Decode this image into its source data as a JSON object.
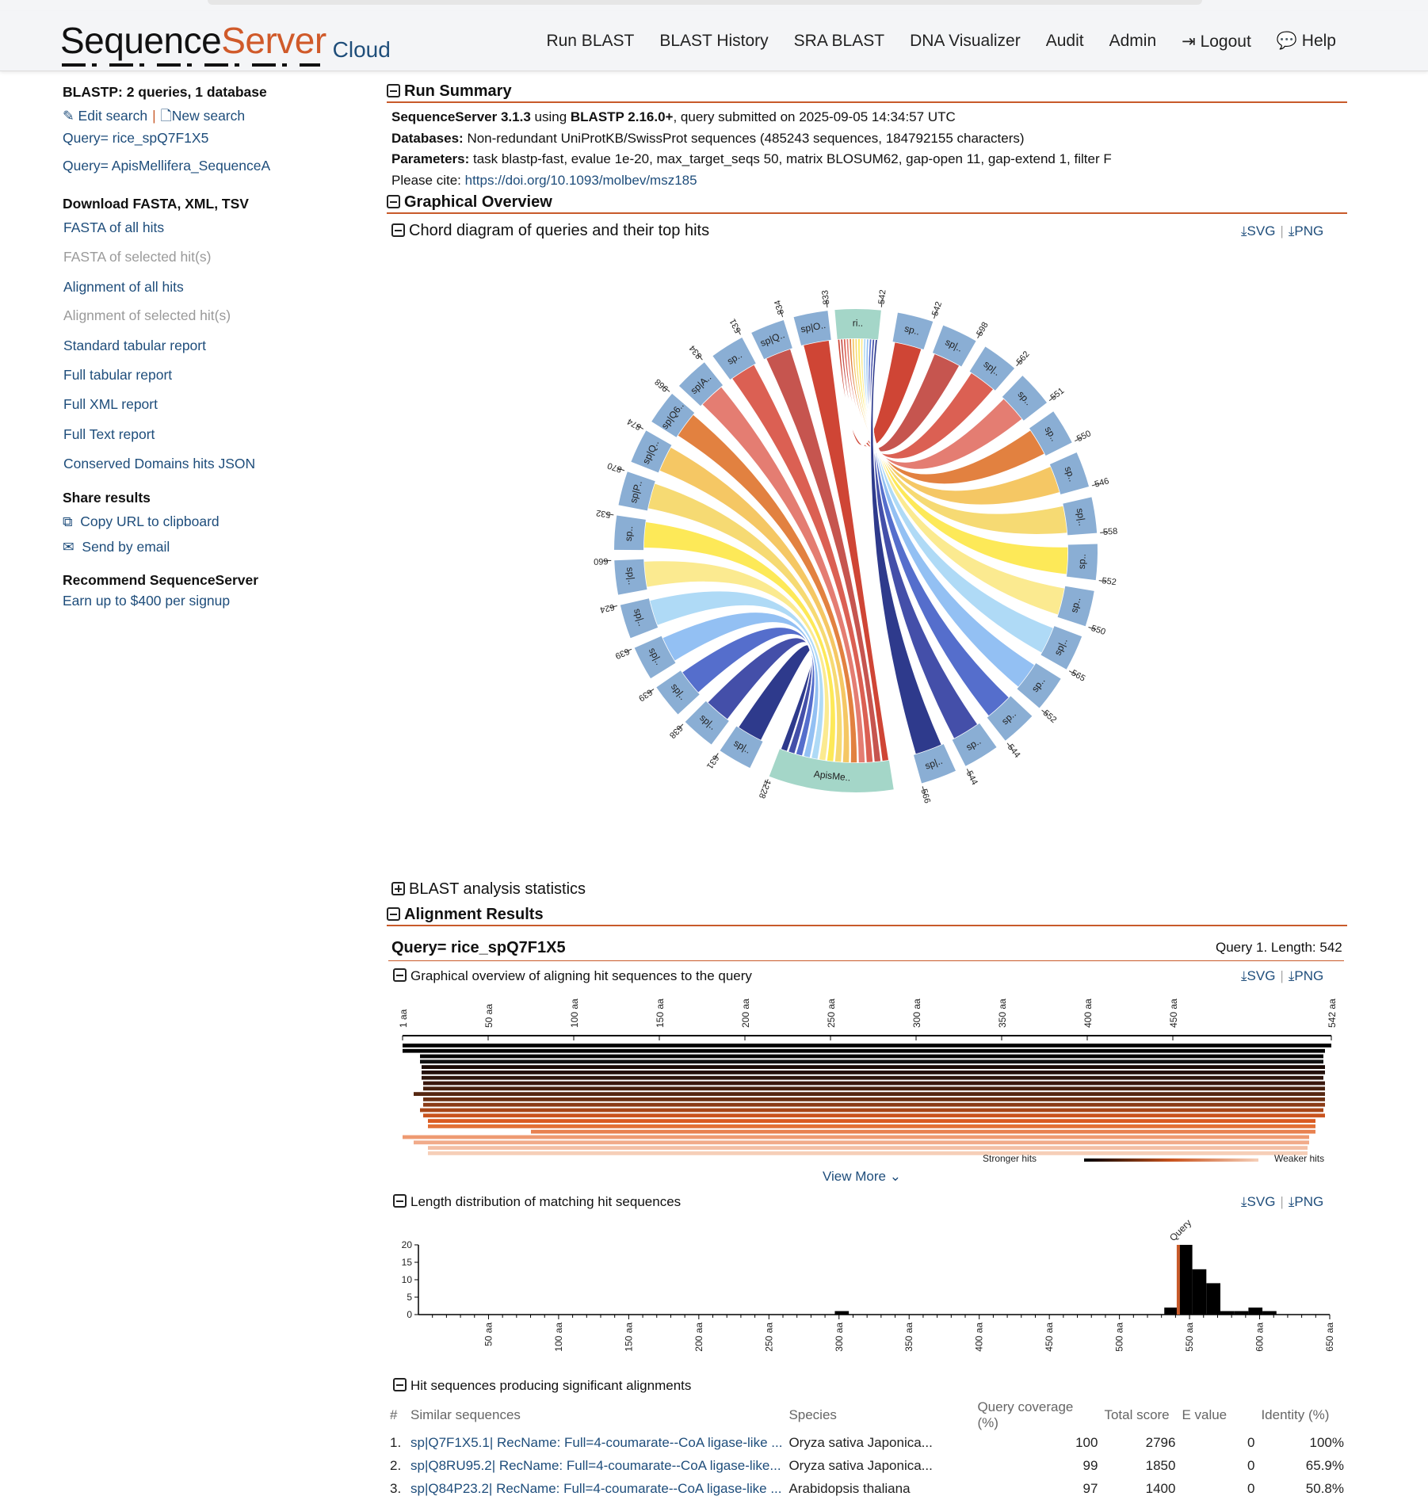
{
  "header": {
    "logo_seq": "Sequence",
    "logo_srv": "Server",
    "logo_cloud": "Cloud",
    "nav": [
      "Run BLAST",
      "BLAST History",
      "SRA BLAST",
      "DNA Visualizer",
      "Audit",
      "Admin",
      "Logout",
      "Help"
    ]
  },
  "sidebar": {
    "title": "BLASTP: 2 queries, 1 database",
    "edit_search": "Edit search",
    "new_search": "New search",
    "queries": [
      "Query= rice_spQ7F1X5",
      "Query= ApisMellifera_SequenceA"
    ],
    "download_title": "Download FASTA, XML, TSV",
    "downloads": [
      {
        "label": "FASTA of all hits",
        "enabled": true
      },
      {
        "label": "FASTA of selected hit(s)",
        "enabled": false
      },
      {
        "label": "Alignment of all hits",
        "enabled": true
      },
      {
        "label": "Alignment of selected hit(s)",
        "enabled": false
      },
      {
        "label": "Standard tabular report",
        "enabled": true
      },
      {
        "label": "Full tabular report",
        "enabled": true
      },
      {
        "label": "Full XML report",
        "enabled": true
      },
      {
        "label": "Full Text report",
        "enabled": true
      },
      {
        "label": "Conserved Domains hits JSON",
        "enabled": true
      }
    ],
    "share_title": "Share results",
    "copy_url": "Copy URL to clipboard",
    "send_email": "Send by email",
    "recommend_title": "Recommend SequenceServer",
    "recommend_link": "Earn up to $400 per signup"
  },
  "summary": {
    "title": "Run Summary",
    "line1_a": "SequenceServer 3.1.3",
    "line1_b": " using ",
    "line1_c": "BLASTP 2.16.0+",
    "line1_d": ", query submitted on 2025-09-05 14:34:57 UTC",
    "db_label": "Databases:",
    "db_value": " Non-redundant UniProtKB/SwissProt sequences (485243 sequences, 184792155 characters)",
    "param_label": "Parameters:",
    "param_value": " task blastp-fast, evalue 1e-20, max_target_seqs 50, matrix BLOSUM62, gap-open 11, gap-extend 1, filter F",
    "cite_label": "Please cite: ",
    "cite_link": "https://doi.org/10.1093/molbev/msz185"
  },
  "graphical_overview": {
    "title": "Graphical Overview",
    "chord_title": "Chord diagram of queries and their top hits",
    "svg": "SVG",
    "png": "PNG"
  },
  "chord": {
    "queries": [
      {
        "label": "ri..",
        "length": "542"
      },
      {
        "label": "ApisMe..",
        "length": "1228"
      }
    ],
    "hits": [
      {
        "label": "sp..",
        "length": "542"
      },
      {
        "label": "sp|..",
        "length": "598"
      },
      {
        "label": "sp|..",
        "length": "562"
      },
      {
        "label": "sp..",
        "length": "551"
      },
      {
        "label": "sp..",
        "length": "550"
      },
      {
        "label": "sp..",
        "length": "546"
      },
      {
        "label": "sp|..",
        "length": "558"
      },
      {
        "label": "sp..",
        "length": "552"
      },
      {
        "label": "sp..",
        "length": "550"
      },
      {
        "label": "sp|..",
        "length": "565"
      },
      {
        "label": "sp..",
        "length": "552"
      },
      {
        "label": "sp..",
        "length": "544"
      },
      {
        "label": "sp..",
        "length": "544"
      },
      {
        "label": "sp|..",
        "length": "566"
      },
      {
        "label": "sp|..",
        "length": "631"
      },
      {
        "label": "sp|..",
        "length": "638"
      },
      {
        "label": "sp|..",
        "length": "639"
      },
      {
        "label": "sp|..",
        "length": "639"
      },
      {
        "label": "sp|..",
        "length": "624"
      },
      {
        "label": "sp|..",
        "length": "660"
      },
      {
        "label": "sp..",
        "length": "532"
      },
      {
        "label": "sp|P..",
        "length": "870"
      },
      {
        "label": "sp|Q..",
        "length": "874"
      },
      {
        "label": "sp|Q6..",
        "length": "968"
      },
      {
        "label": "sp|A..",
        "length": "834"
      },
      {
        "label": "sp..",
        "length": "531"
      },
      {
        "label": "sp|Q..",
        "length": "834"
      },
      {
        "label": "sp|O..",
        "length": "833"
      }
    ]
  },
  "blast_stats": {
    "title": "BLAST analysis statistics"
  },
  "alignment": {
    "title": "Alignment Results",
    "query_title": "Query= rice_spQ7F1X5",
    "query_meta": "Query 1. Length: 542",
    "overview_title": "Graphical overview of aligning hit sequences to the query",
    "ticks": [
      "1 aa",
      "50 aa",
      "100 aa",
      "150 aa",
      "200 aa",
      "250 aa",
      "300 aa",
      "350 aa",
      "400 aa",
      "450 aa",
      "542 aa"
    ],
    "stronger": "Stronger hits",
    "weaker": "Weaker hits",
    "view_more": "View More",
    "length_title": "Graphical overview of aligning hit sequences to the query",
    "length_dist_title": "Length distribution of matching hit sequences",
    "hits_title": "Hit sequences producing significant alignments"
  },
  "chart_data": {
    "type": "bar",
    "title": "Length distribution of matching hit sequences",
    "ylim": [
      0,
      20
    ],
    "y_ticks": [
      "0",
      "5",
      "10",
      "15",
      "20"
    ],
    "x_ticks": [
      "50 aa",
      "100 aa",
      "150 aa",
      "200 aa",
      "250 aa",
      "300 aa",
      "350 aa",
      "400 aa",
      "450 aa",
      "500 aa",
      "550 aa",
      "600 aa",
      "650 aa"
    ],
    "query_label": "Query",
    "query_length": 542,
    "bins": [
      {
        "x": 297,
        "value": 1
      },
      {
        "x": 532,
        "value": 2
      },
      {
        "x": 542,
        "value": 20
      },
      {
        "x": 552,
        "value": 13
      },
      {
        "x": 562,
        "value": 9
      },
      {
        "x": 572,
        "value": 1
      },
      {
        "x": 582,
        "value": 1
      },
      {
        "x": 592,
        "value": 2
      },
      {
        "x": 602,
        "value": 1
      }
    ]
  },
  "hits_table": {
    "columns": [
      "#",
      "Similar sequences",
      "Species",
      "Query coverage (%)",
      "Total score",
      "E value",
      "Identity (%)"
    ],
    "rows": [
      [
        "1.",
        "sp|Q7F1X5.1| RecName: Full=4-coumarate--CoA ligase-like ...",
        "Oryza sativa Japonica...",
        "100",
        "2796",
        "0",
        "100%"
      ],
      [
        "2.",
        "sp|Q8RU95.2| RecName: Full=4-coumarate--CoA ligase-like...",
        "Oryza sativa Japonica...",
        "99",
        "1850",
        "0",
        "65.9%"
      ],
      [
        "3.",
        "sp|Q84P23.2| RecName: Full=4-coumarate--CoA ligase-like ...",
        "Arabidopsis thaliana",
        "97",
        "1400",
        "0",
        "50.8%"
      ]
    ]
  },
  "colors": {
    "accent": "#c85a2a",
    "link": "#1e4d7b",
    "chord_queries": "#a4d6c8",
    "chord_hits": "#8aaed4"
  }
}
